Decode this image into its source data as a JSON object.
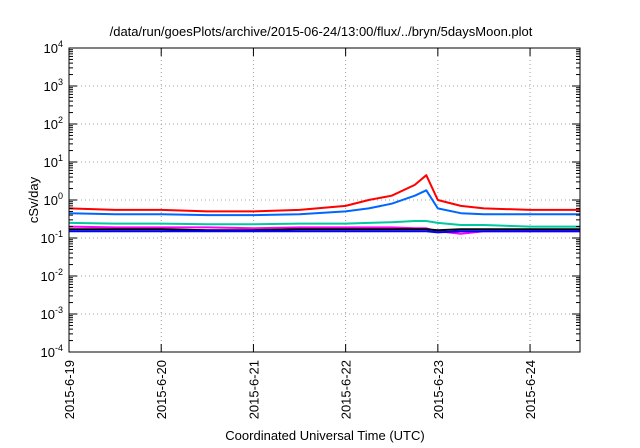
{
  "chart_data": {
    "type": "line",
    "title": "/data/run/goesPlots/archive/2015-06-24/13:00/flux/../bryn/5daysMoon.plot",
    "xlabel": "Coordinated Universal Time (UTC)",
    "ylabel": "cSv/day",
    "yscale": "log",
    "ylim": [
      0.0001,
      10000
    ],
    "y_ticks": [
      {
        "base": "10",
        "exp": "4"
      },
      {
        "base": "10",
        "exp": "3"
      },
      {
        "base": "10",
        "exp": "2"
      },
      {
        "base": "10",
        "exp": "1"
      },
      {
        "base": "10",
        "exp": "0"
      },
      {
        "base": "10",
        "exp": "-1"
      },
      {
        "base": "10",
        "exp": "-2"
      },
      {
        "base": "10",
        "exp": "-3"
      },
      {
        "base": "10",
        "exp": "-4"
      }
    ],
    "xlim": [
      "2015-06-19",
      "2015-06-24 13:00"
    ],
    "x_ticks": [
      "2015-6-19",
      "2015-6-20",
      "2015-6-21",
      "2015-6-22",
      "2015-6-23",
      "2015-6-24"
    ],
    "grid": true,
    "legend": "none",
    "x": [
      "2015-06-19 00:00",
      "2015-06-19 12:00",
      "2015-06-20 00:00",
      "2015-06-20 12:00",
      "2015-06-21 00:00",
      "2015-06-21 12:00",
      "2015-06-22 00:00",
      "2015-06-22 06:00",
      "2015-06-22 12:00",
      "2015-06-22 18:00",
      "2015-06-22 21:00",
      "2015-06-23 00:00",
      "2015-06-23 06:00",
      "2015-06-23 12:00",
      "2015-06-24 00:00",
      "2015-06-24 13:00"
    ],
    "series": [
      {
        "color": "#ff0000",
        "values": [
          0.6,
          0.55,
          0.55,
          0.5,
          0.5,
          0.55,
          0.7,
          1.0,
          1.3,
          2.5,
          4.5,
          1.0,
          0.7,
          0.6,
          0.55,
          0.55
        ]
      },
      {
        "color": "#0066ff",
        "values": [
          0.45,
          0.42,
          0.42,
          0.4,
          0.4,
          0.42,
          0.5,
          0.6,
          0.8,
          1.3,
          1.8,
          0.6,
          0.45,
          0.42,
          0.42,
          0.42
        ]
      },
      {
        "color": "#00c8a0",
        "values": [
          0.25,
          0.24,
          0.24,
          0.23,
          0.23,
          0.24,
          0.24,
          0.25,
          0.26,
          0.28,
          0.28,
          0.25,
          0.22,
          0.22,
          0.2,
          0.2
        ]
      },
      {
        "color": "#ff00ff",
        "values": [
          0.2,
          0.19,
          0.19,
          0.19,
          0.18,
          0.19,
          0.19,
          0.19,
          0.19,
          0.18,
          0.18,
          0.15,
          0.13,
          0.15,
          0.15,
          0.15
        ]
      },
      {
        "color": "#000000",
        "values": [
          0.17,
          0.17,
          0.17,
          0.16,
          0.16,
          0.17,
          0.17,
          0.17,
          0.17,
          0.17,
          0.17,
          0.16,
          0.17,
          0.17,
          0.17,
          0.17
        ]
      },
      {
        "color": "#0000ff",
        "values": [
          0.15,
          0.15,
          0.15,
          0.15,
          0.15,
          0.15,
          0.15,
          0.15,
          0.15,
          0.15,
          0.15,
          0.14,
          0.15,
          0.15,
          0.15,
          0.15
        ]
      }
    ]
  }
}
